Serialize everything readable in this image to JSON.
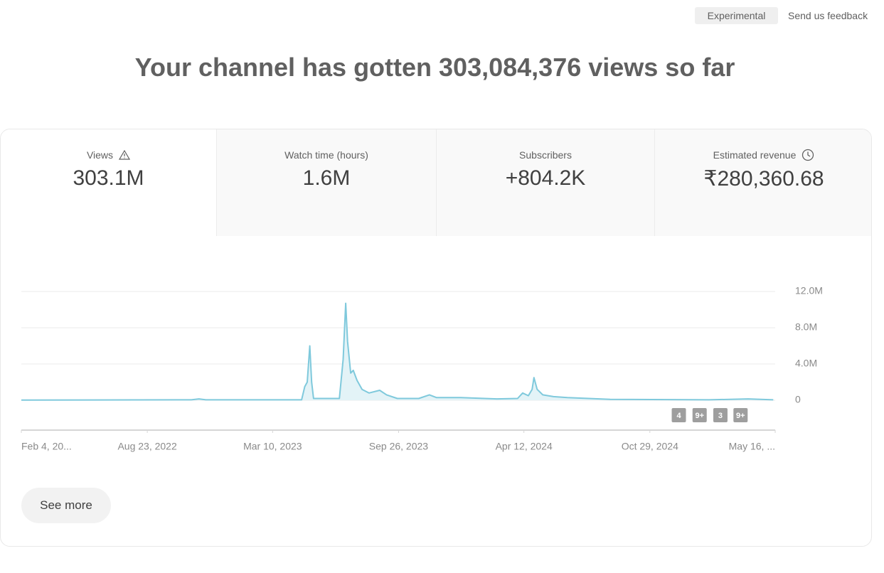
{
  "header": {
    "badge": "Experimental",
    "feedback": "Send us feedback",
    "title": "Your channel has gotten 303,084,376 views so far"
  },
  "metrics": [
    {
      "label": "Views",
      "value": "303.1M"
    },
    {
      "label": "Watch time (hours)",
      "value": "1.6M"
    },
    {
      "label": "Subscribers",
      "value": "+804.2K"
    },
    {
      "label": "Estimated revenue",
      "value": "₹280,360.68"
    }
  ],
  "chart_data": {
    "type": "line",
    "color": "#7fc9dc",
    "area_color": "#e3f3f7",
    "grid": true,
    "x": [
      "2022-02-04",
      "2022-11-01",
      "2022-11-13",
      "2022-11-24",
      "2023-04-25",
      "2023-04-30",
      "2023-05-04",
      "2023-05-08",
      "2023-05-11",
      "2023-05-14",
      "2023-06-24",
      "2023-06-30",
      "2023-07-04",
      "2023-07-07",
      "2023-07-12",
      "2023-07-16",
      "2023-07-22",
      "2023-07-30",
      "2023-08-10",
      "2023-08-27",
      "2023-09-07",
      "2023-09-24",
      "2023-10-28",
      "2023-11-14",
      "2023-11-25",
      "2024-01-03",
      "2024-02-29",
      "2024-04-02",
      "2024-04-10",
      "2024-04-19",
      "2024-04-25",
      "2024-04-28",
      "2024-05-03",
      "2024-05-12",
      "2024-05-29",
      "2024-06-20",
      "2024-07-24",
      "2024-08-27",
      "2025-01-31",
      "2025-04-03",
      "2025-05-13"
    ],
    "values": [
      20000,
      50000,
      150000,
      50000,
      50000,
      1500000,
      2000000,
      6000000,
      2000000,
      200000,
      200000,
      4500000,
      10700000,
      6500000,
      3000000,
      3300000,
      2200000,
      1200000,
      800000,
      1100000,
      600000,
      200000,
      200000,
      600000,
      300000,
      300000,
      150000,
      200000,
      800000,
      500000,
      1200000,
      2500000,
      1200000,
      600000,
      400000,
      300000,
      200000,
      100000,
      50000,
      150000,
      50000
    ],
    "xlim": [
      "2022-02-04",
      "2025-05-16"
    ],
    "xticks": [
      {
        "value": "2022-02-04",
        "label": "Feb 4, 20..."
      },
      {
        "value": "2022-08-23",
        "label": "Aug 23, 2022"
      },
      {
        "value": "2023-03-10",
        "label": "Mar 10, 2023"
      },
      {
        "value": "2023-09-26",
        "label": "Sep 26, 2023"
      },
      {
        "value": "2024-04-12",
        "label": "Apr 12, 2024"
      },
      {
        "value": "2024-10-29",
        "label": "Oct 29, 2024"
      },
      {
        "value": "2025-05-16",
        "label": "May 16, ..."
      }
    ],
    "ylim": [
      0,
      12000000
    ],
    "yticks": [
      0,
      {
        "value": 4000000,
        "label": "4.0M"
      },
      {
        "value": 8000000,
        "label": "8.0M"
      },
      {
        "value": 12000000,
        "label": "12.0M"
      }
    ],
    "annotations": [
      {
        "x": "2024-12-14",
        "label": "4"
      },
      {
        "x": "2025-01-16",
        "label": "9+"
      },
      {
        "x": "2025-02-18",
        "label": "3"
      },
      {
        "x": "2025-03-22",
        "label": "9+"
      }
    ]
  },
  "button": "See more"
}
